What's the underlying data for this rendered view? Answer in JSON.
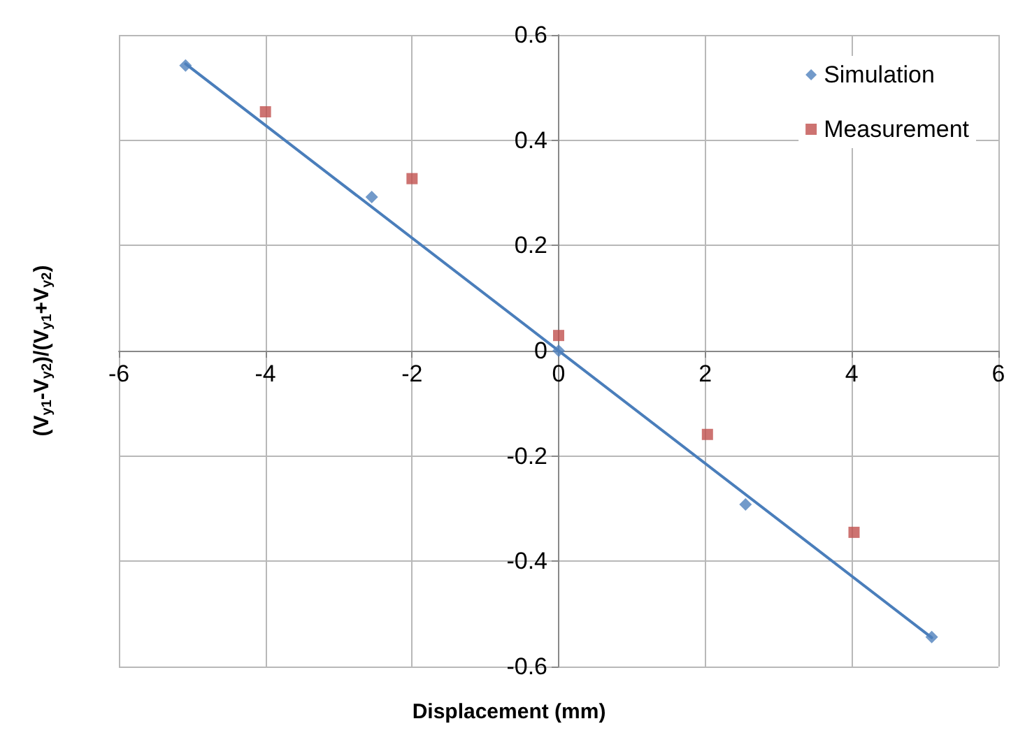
{
  "chart_data": {
    "type": "scatter",
    "xlabel": "Displacement (mm)",
    "ylabel": "(V$_{y1}$-V$_{y2}$)/(V$_{y1}$+V$_{y2}$)",
    "xlim": [
      -6,
      6
    ],
    "xticks": [
      -6,
      -4,
      -2,
      0,
      2,
      4,
      6
    ],
    "ylim": [
      -0.6,
      0.6
    ],
    "yticks": [
      -0.6,
      -0.4,
      -0.2,
      0,
      0.2,
      0.4,
      0.6
    ],
    "grid": true,
    "legend": "top right",
    "series": [
      {
        "name": "Simulation",
        "marker": "diamond",
        "color": "#4f81bd",
        "x": [
          -5.09,
          -2.55,
          0,
          2.55,
          5.09
        ],
        "values": [
          0.542,
          0.292,
          0,
          -0.292,
          -0.544
        ]
      },
      {
        "name": "Measurement",
        "marker": "square",
        "color": "#c0504d",
        "x": [
          -4.0,
          -2.0,
          0,
          2.03,
          4.03
        ],
        "values": [
          0.454,
          0.327,
          0.029,
          -0.159,
          -0.345
        ]
      },
      {
        "type": "line",
        "marker": "none",
        "line_style": "solid",
        "color": "#4a7ebb",
        "x": [
          -5.09,
          5.09
        ],
        "values": [
          0.545,
          -0.545
        ]
      }
    ]
  }
}
